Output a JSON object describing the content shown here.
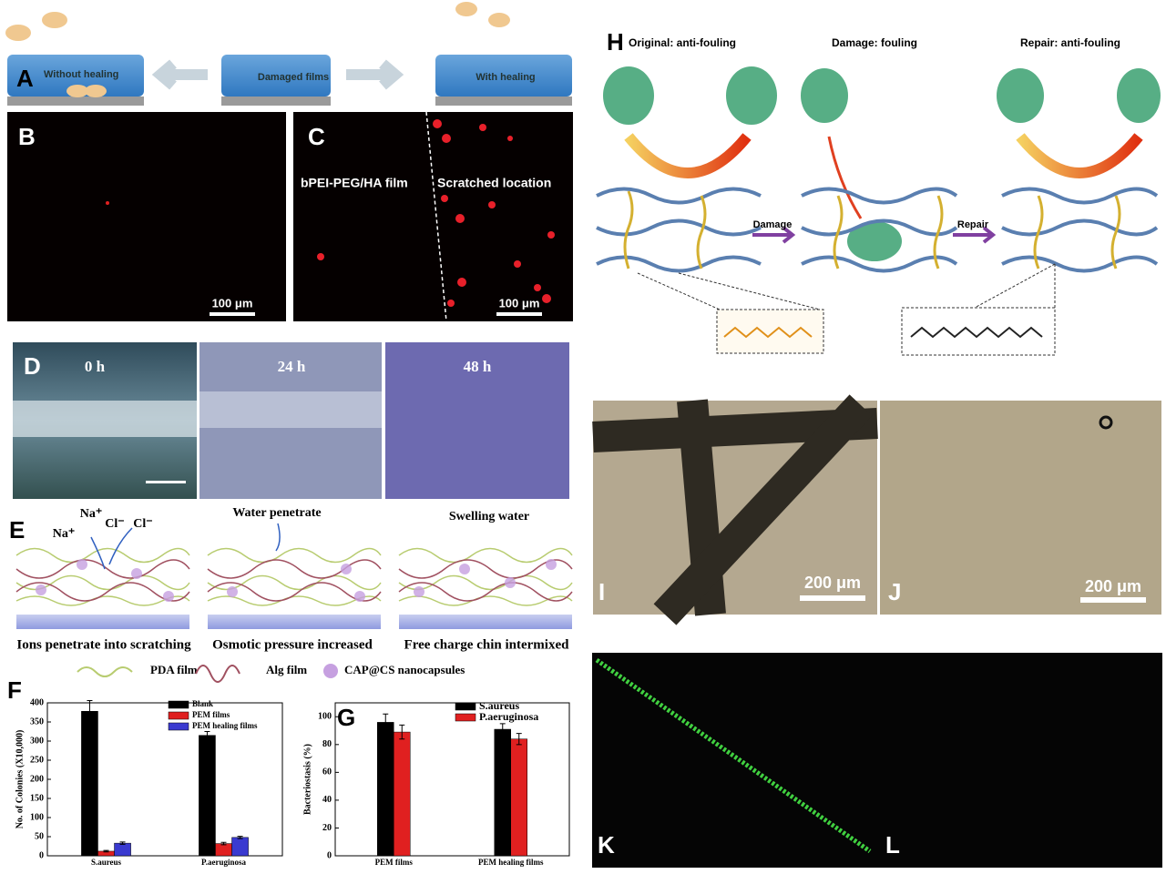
{
  "panels": {
    "A": {
      "label": "A",
      "left": "Without healing",
      "middle": "Damaged films",
      "right": "With healing"
    },
    "B": {
      "label": "B",
      "scale": "100 μm"
    },
    "C": {
      "label": "C",
      "left": "bPEI-PEG/HA film",
      "right": "Scratched location",
      "scale": "100 μm"
    },
    "D": {
      "label": "D",
      "times": [
        "0 h",
        "24 h",
        "48 h"
      ]
    },
    "E": {
      "label": "E",
      "ions": [
        "Na⁺",
        "Cl⁻",
        "Cl⁻",
        "Na⁺"
      ],
      "top": [
        "Water penetrate",
        "Swelling water"
      ],
      "captions": [
        "Ions penetrate into scratching",
        "Osmotic pressure increased",
        "Free charge chin intermixed"
      ],
      "legend": [
        "PDA film",
        "Alg film",
        "CAP@CS nanocapsules"
      ]
    },
    "F": {
      "label": "F"
    },
    "G": {
      "label": "G"
    },
    "H": {
      "label": "H",
      "stages": [
        "Original: anti-fouling",
        "Damage: fouling",
        "Repair: anti-fouling"
      ],
      "arrows": [
        "Damage",
        "Repair"
      ]
    },
    "I": {
      "label": "I",
      "scale": "200 μm"
    },
    "J": {
      "label": "J",
      "scale": "200 μm"
    },
    "K": {
      "label": "K"
    },
    "L": {
      "label": "L"
    }
  },
  "chart_data": [
    {
      "type": "bar",
      "ylabel": "No. of Colonies (X10,000)",
      "categories": [
        "S.aureus",
        "P.aeruginosa"
      ],
      "series": [
        {
          "name": "Blank",
          "color": "#000000",
          "values": [
            378,
            315
          ],
          "errors": [
            28,
            10
          ]
        },
        {
          "name": "PEM films",
          "color": "#e02020",
          "values": [
            12,
            32
          ],
          "errors": [
            2,
            3
          ]
        },
        {
          "name": "PEM healing films",
          "color": "#3a3ad0",
          "values": [
            33,
            48
          ],
          "errors": [
            3,
            3
          ]
        }
      ],
      "ylim": [
        0,
        400
      ],
      "yticks": [
        0,
        50,
        100,
        150,
        200,
        250,
        300,
        350,
        400
      ]
    },
    {
      "type": "bar",
      "ylabel": "Bacteriostasis (%)",
      "categories": [
        "PEM films",
        "PEM healing films"
      ],
      "series": [
        {
          "name": "S.aureus",
          "color": "#000000",
          "values": [
            96,
            91
          ],
          "errors": [
            6,
            4
          ]
        },
        {
          "name": "P.aeruginosa",
          "color": "#e02020",
          "values": [
            89,
            84
          ],
          "errors": [
            5,
            4
          ]
        }
      ],
      "ylim": [
        0,
        110
      ],
      "yticks": [
        0,
        20,
        40,
        60,
        80,
        100
      ]
    }
  ]
}
